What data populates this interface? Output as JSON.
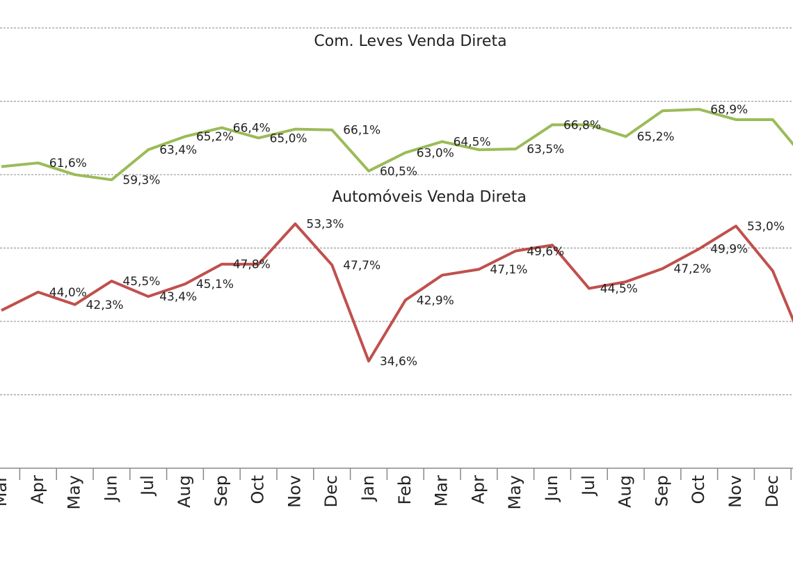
{
  "chart_data": {
    "type": "line",
    "categories": [
      "Mar",
      "Apr",
      "May",
      "Jun",
      "Jul",
      "Aug",
      "Sep",
      "Oct",
      "Nov",
      "Dec",
      "Jan",
      "Feb",
      "Mar",
      "Apr",
      "May",
      "Jun",
      "Jul",
      "Aug",
      "Sep",
      "Oct",
      "Nov",
      "Dec",
      null
    ],
    "series": [
      {
        "name": "Com. Leves Venda Direta",
        "color": "#9bbb59",
        "values": [
          61.1,
          61.6,
          60.0,
          59.3,
          63.4,
          65.2,
          66.4,
          65.0,
          66.2,
          66.1,
          60.5,
          63.0,
          64.5,
          63.4,
          63.5,
          66.8,
          66.8,
          65.2,
          68.7,
          68.9,
          67.5,
          67.5,
          61.5
        ],
        "value_labels": [
          null,
          "61,6%",
          null,
          "59,3%",
          "63,4%",
          "65,2%",
          "66,4%",
          "65,0%",
          null,
          "66,1%",
          "60,5%",
          "63,0%",
          "64,5%",
          null,
          "63,5%",
          "66,8%",
          null,
          "65,2%",
          null,
          "68,9%",
          null,
          null,
          null
        ]
      },
      {
        "name": "Automóveis Venda Direta",
        "color": "#c0504d",
        "values": [
          41.5,
          44.0,
          42.3,
          45.5,
          43.4,
          45.1,
          47.8,
          47.8,
          53.3,
          47.7,
          34.6,
          42.9,
          46.3,
          47.1,
          49.6,
          50.4,
          44.5,
          45.4,
          47.2,
          49.9,
          53.0,
          46.9,
          34.9
        ],
        "value_labels": [
          null,
          "44,0%",
          "42,3%",
          "45,5%",
          "43,4%",
          "45,1%",
          "47,8%",
          null,
          "53,3%",
          "47,7%",
          "34,6%",
          "42,9%",
          null,
          "47,1%",
          "49,6%",
          null,
          "44,5%",
          null,
          "47,2%",
          "49,9%",
          "53,0%",
          null,
          null
        ]
      }
    ],
    "ylim": [
      20,
      83.8
    ],
    "yticks": [
      30,
      40,
      50,
      60,
      70,
      80
    ],
    "grid": true
  }
}
